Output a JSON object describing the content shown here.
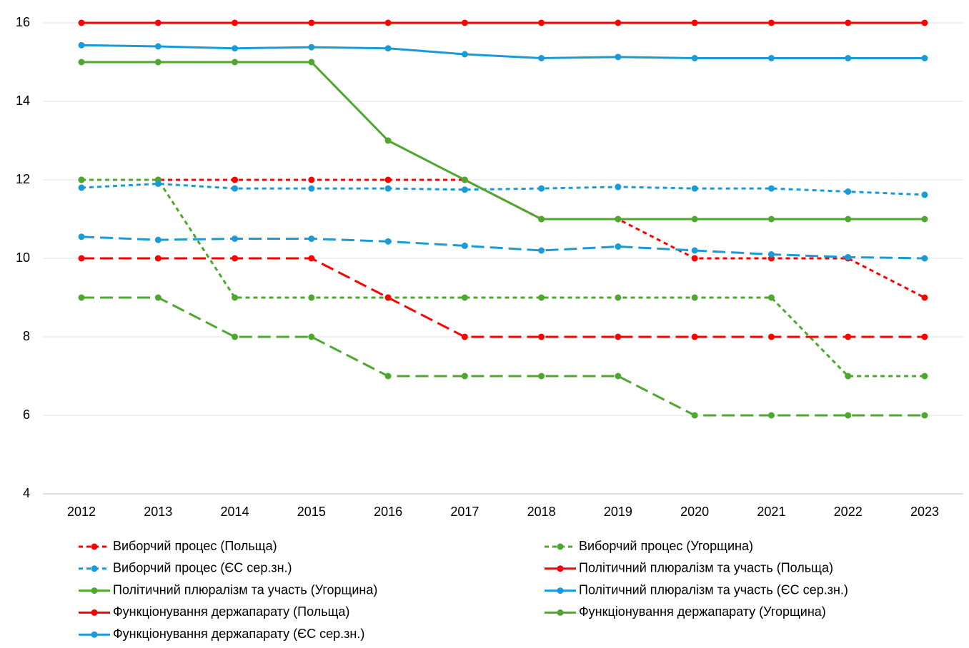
{
  "chart_data": {
    "type": "line",
    "categories": [
      "2012",
      "2013",
      "2014",
      "2015",
      "2016",
      "2017",
      "2018",
      "2019",
      "2020",
      "2021",
      "2022",
      "2023"
    ],
    "ylim": [
      4,
      16
    ],
    "yticks": [
      4,
      6,
      8,
      10,
      12,
      14,
      16
    ],
    "grid": true,
    "series": [
      {
        "name": "Виборчий процес (Польща)",
        "color": "#ff0000",
        "dash": "short",
        "values": [
          12,
          12,
          12,
          12,
          12,
          12,
          11,
          11,
          10,
          10,
          10,
          9
        ]
      },
      {
        "name": "Виборчий процес (Угорщина)",
        "color": "#4ea72e",
        "dash": "short",
        "values": [
          12,
          12,
          9,
          9,
          9,
          9,
          9,
          9,
          9,
          9,
          7,
          7
        ]
      },
      {
        "name": "Виборчий процес (ЄС сер.зн.)",
        "color": "#1a9bd7",
        "dash": "short",
        "values": [
          11.8,
          11.9,
          11.78,
          11.78,
          11.78,
          11.75,
          11.78,
          11.82,
          11.78,
          11.78,
          11.7,
          11.62
        ]
      },
      {
        "name": "Політичний плюралізм та участь (Польща)",
        "color": "#ff0000",
        "dash": "solid",
        "values": [
          16,
          16,
          16,
          16,
          16,
          16,
          16,
          16,
          16,
          16,
          16,
          16
        ]
      },
      {
        "name": "Політичний плюралізм та участь (Угорщина)",
        "color": "#4ea72e",
        "dash": "solid",
        "values": [
          15,
          15,
          15,
          15,
          13,
          12,
          11,
          11,
          11,
          11,
          11,
          11
        ]
      },
      {
        "name": "Політичний плюралізм та участь (ЄС сер.зн.)",
        "color": "#1a9bd7",
        "dash": "solid",
        "values": [
          15.43,
          15.4,
          15.35,
          15.38,
          15.35,
          15.2,
          15.1,
          15.13,
          15.1,
          15.1,
          15.1,
          15.1
        ]
      },
      {
        "name": "Функціонування держапарату (Польща)",
        "color": "#ff0000",
        "dash": "long",
        "values": [
          10,
          10,
          10,
          10,
          9,
          8,
          8,
          8,
          8,
          8,
          8,
          8
        ]
      },
      {
        "name": "Функціонування держапарату (Угорщина)",
        "color": "#4ea72e",
        "dash": "long",
        "values": [
          9,
          9,
          8,
          8,
          7,
          7,
          7,
          7,
          6,
          6,
          6,
          6
        ]
      },
      {
        "name": "Функціонування держапарату (ЄС сер.зн.)",
        "color": "#1a9bd7",
        "dash": "long",
        "values": [
          10.55,
          10.47,
          10.5,
          10.5,
          10.43,
          10.32,
          10.2,
          10.3,
          10.2,
          10.1,
          10.03,
          10
        ]
      }
    ]
  }
}
